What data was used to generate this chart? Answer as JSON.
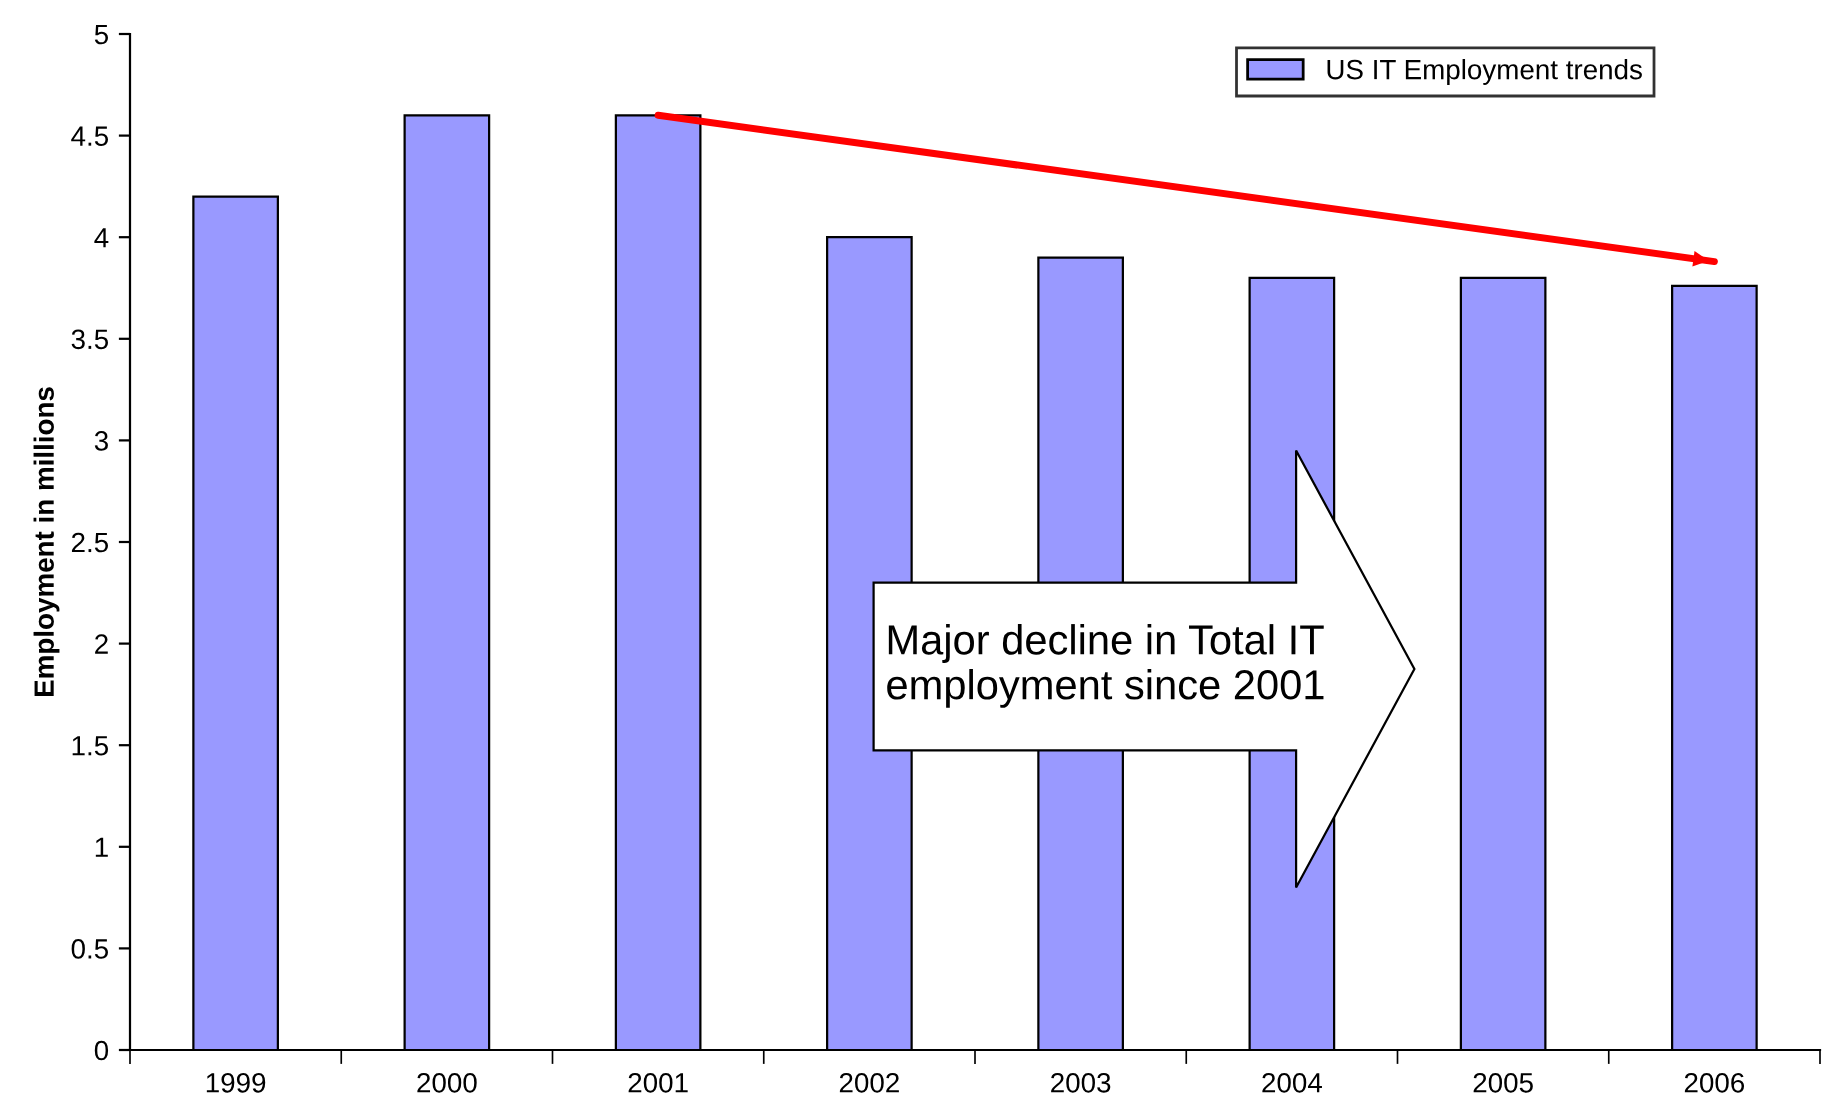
{
  "chart_data": {
    "type": "bar",
    "ylabel": "Employment in millions",
    "categories": [
      "1999",
      "2000",
      "2001",
      "2002",
      "2003",
      "2004",
      "2005",
      "2006"
    ],
    "series": [
      {
        "name": "US IT Employment trends",
        "color": "#9999ff",
        "values": [
          4.2,
          4.6,
          4.6,
          4.0,
          3.9,
          3.8,
          3.8,
          3.76
        ]
      },
      {
        "type": "line",
        "color": "#ff0000",
        "values": [
          null,
          null,
          4.6,
          null,
          null,
          null,
          null,
          3.88
        ]
      }
    ],
    "ylim": [
      0,
      5
    ],
    "yticks": [
      0,
      0.5,
      1,
      1.5,
      2,
      2.5,
      3,
      3.5,
      4,
      4.5,
      5
    ],
    "grid": false,
    "legend": "top right",
    "annotations": [
      "Major decline in Total IT employment since 2001"
    ]
  }
}
